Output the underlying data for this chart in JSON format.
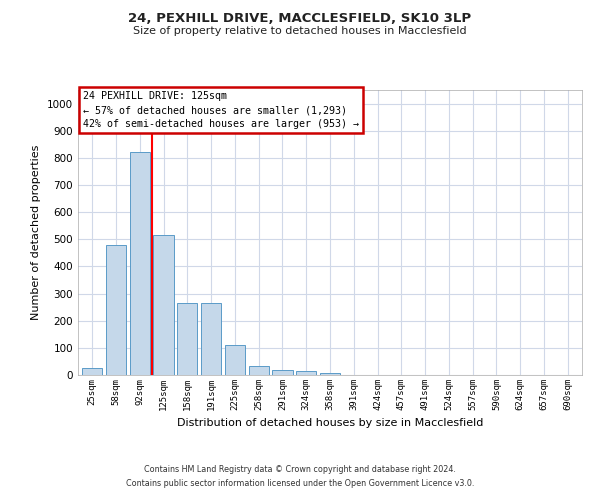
{
  "title1": "24, PEXHILL DRIVE, MACCLESFIELD, SK10 3LP",
  "title2": "Size of property relative to detached houses in Macclesfield",
  "xlabel": "Distribution of detached houses by size in Macclesfield",
  "ylabel": "Number of detached properties",
  "categories": [
    "25sqm",
    "58sqm",
    "92sqm",
    "125sqm",
    "158sqm",
    "191sqm",
    "225sqm",
    "258sqm",
    "291sqm",
    "324sqm",
    "358sqm",
    "391sqm",
    "424sqm",
    "457sqm",
    "491sqm",
    "524sqm",
    "557sqm",
    "590sqm",
    "624sqm",
    "657sqm",
    "690sqm"
  ],
  "values": [
    25,
    480,
    820,
    515,
    265,
    265,
    110,
    35,
    18,
    15,
    8,
    0,
    0,
    0,
    0,
    0,
    0,
    0,
    0,
    0,
    0
  ],
  "bar_color": "#c5d8ea",
  "bar_edge_color": "#5a9bc8",
  "red_line_x": 2.5,
  "ylim": [
    0,
    1050
  ],
  "yticks": [
    0,
    100,
    200,
    300,
    400,
    500,
    600,
    700,
    800,
    900,
    1000
  ],
  "annotation_title": "24 PEXHILL DRIVE: 125sqm",
  "annotation_line1": "← 57% of detached houses are smaller (1,293)",
  "annotation_line2": "42% of semi-detached houses are larger (953) →",
  "annotation_box_color": "#ffffff",
  "annotation_box_edge": "#cc0000",
  "footer1": "Contains HM Land Registry data © Crown copyright and database right 2024.",
  "footer2": "Contains public sector information licensed under the Open Government Licence v3.0.",
  "background_color": "#ffffff",
  "grid_color": "#d0d8e8"
}
